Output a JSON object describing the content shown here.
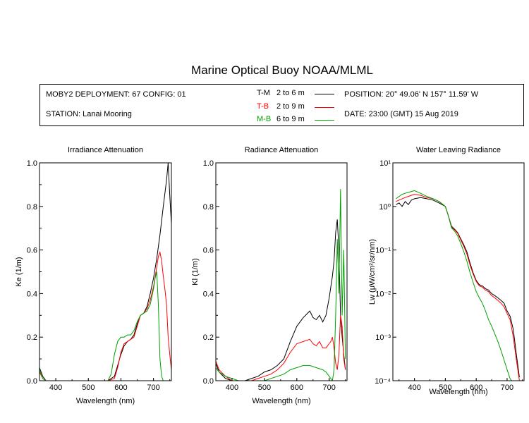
{
  "title": "Marine Optical Buoy NOAA/MLML",
  "info": {
    "deployment": "MOBY2 DEPLOYMENT: 67 CONFIG: 01",
    "station": "STATION: Lanai Mooring",
    "position": "POSITION: 20° 49.06' N   157° 11.59' W",
    "date": "DATE: 23:00 (GMT) 15 Aug 2019"
  },
  "legend": [
    {
      "code": "T-M",
      "range": "2 to 6  m",
      "color": "#000000"
    },
    {
      "code": "T-B",
      "range": "2 to 9  m",
      "color": "#ff0000"
    },
    {
      "code": "M-B",
      "range": "6 to 9  m",
      "color": "#00a000"
    }
  ],
  "chart_data": [
    {
      "type": "line",
      "title": "Irradiance Attenuation",
      "xlabel": "Wavelength (nm)",
      "ylabel": "Ke  (1/m)",
      "xlim": [
        350,
        755
      ],
      "ylim": [
        0,
        1
      ],
      "xticks": [
        "400",
        "500",
        "600",
        "700"
      ],
      "yticks": [
        "0.0",
        "0.2",
        "0.4",
        "0.6",
        "0.8",
        "1.0"
      ],
      "series": [
        {
          "name": "T-M",
          "color": "#000000",
          "x": [
            350,
            360,
            370,
            380,
            560,
            580,
            590,
            600,
            610,
            620,
            630,
            640,
            650,
            660,
            670,
            680,
            690,
            700,
            710,
            720,
            730,
            740,
            745,
            750,
            755
          ],
          "y": [
            0.06,
            0.02,
            0.0,
            0.0,
            0.0,
            0.02,
            0.07,
            0.12,
            0.16,
            0.18,
            0.19,
            0.21,
            0.26,
            0.3,
            0.31,
            0.34,
            0.4,
            0.47,
            0.56,
            0.67,
            0.8,
            0.92,
            1.0,
            0.85,
            0.72
          ]
        },
        {
          "name": "T-B",
          "color": "#ff0000",
          "x": [
            350,
            360,
            370,
            380,
            560,
            580,
            590,
            600,
            610,
            620,
            630,
            640,
            650,
            660,
            670,
            680,
            690,
            700,
            710,
            715,
            720,
            725,
            730,
            735,
            740,
            745,
            750,
            755
          ],
          "y": [
            0.04,
            0.01,
            0.0,
            0.0,
            0.0,
            0.01,
            0.06,
            0.13,
            0.17,
            0.18,
            0.19,
            0.2,
            0.25,
            0.3,
            0.31,
            0.33,
            0.37,
            0.43,
            0.52,
            0.57,
            0.59,
            0.55,
            0.48,
            0.42,
            0.35,
            0.2,
            0.12,
            0.05
          ]
        },
        {
          "name": "M-B",
          "color": "#00a000",
          "x": [
            350,
            360,
            370,
            380,
            560,
            570,
            580,
            590,
            600,
            610,
            620,
            630,
            640,
            650,
            660,
            670,
            680,
            690,
            700,
            705,
            710,
            715,
            720,
            725,
            730
          ],
          "y": [
            0.05,
            0.01,
            0.0,
            0.0,
            0.0,
            0.03,
            0.12,
            0.18,
            0.2,
            0.2,
            0.21,
            0.21,
            0.23,
            0.27,
            0.3,
            0.31,
            0.32,
            0.35,
            0.42,
            0.47,
            0.5,
            0.35,
            0.1,
            0.02,
            0.0
          ]
        }
      ]
    },
    {
      "type": "line",
      "title": "Radiance Attenuation",
      "xlabel": "Wavelength (nm)",
      "ylabel": "Kl  (1/m)",
      "xlim": [
        350,
        755
      ],
      "ylim": [
        0,
        1
      ],
      "xticks": [
        "400",
        "500",
        "600",
        "700"
      ],
      "yticks": [
        "0.0",
        "0.2",
        "0.4",
        "0.6",
        "0.8",
        "1.0"
      ],
      "series": [
        {
          "name": "T-M",
          "color": "#000000",
          "x": [
            350,
            360,
            380,
            400,
            420,
            440,
            460,
            480,
            500,
            520,
            540,
            560,
            580,
            600,
            620,
            640,
            650,
            660,
            670,
            680,
            690,
            700,
            705,
            710,
            715,
            720,
            725,
            730,
            735,
            740,
            745,
            750
          ],
          "y": [
            0.08,
            0.04,
            0.01,
            0.0,
            0.0,
            0.0,
            0.01,
            0.02,
            0.04,
            0.05,
            0.07,
            0.1,
            0.18,
            0.25,
            0.29,
            0.32,
            0.29,
            0.28,
            0.3,
            0.27,
            0.3,
            0.38,
            0.43,
            0.48,
            0.55,
            0.68,
            0.74,
            0.6,
            0.3,
            0.2,
            0.12,
            0.05
          ]
        },
        {
          "name": "T-B",
          "color": "#ff0000",
          "x": [
            350,
            360,
            380,
            400,
            420,
            440,
            460,
            480,
            500,
            520,
            540,
            560,
            580,
            600,
            620,
            640,
            650,
            660,
            670,
            680,
            690,
            700,
            705,
            710,
            715,
            720,
            725,
            730,
            735,
            740,
            745,
            750
          ],
          "y": [
            0.09,
            0.05,
            0.02,
            0.0,
            0.0,
            0.0,
            0.0,
            0.01,
            0.02,
            0.03,
            0.05,
            0.08,
            0.13,
            0.17,
            0.18,
            0.19,
            0.17,
            0.16,
            0.18,
            0.15,
            0.15,
            0.17,
            0.18,
            0.2,
            0.15,
            0.08,
            0.05,
            0.12,
            0.3,
            0.25,
            0.1,
            0.05
          ]
        },
        {
          "name": "M-B",
          "color": "#00a000",
          "x": [
            350,
            360,
            380,
            400,
            420,
            440,
            460,
            480,
            500,
            520,
            540,
            560,
            580,
            600,
            620,
            640,
            660,
            680,
            690,
            700,
            710,
            715,
            720,
            725,
            730,
            735,
            740,
            745,
            750
          ],
          "y": [
            0.06,
            0.04,
            0.02,
            0.01,
            0.0,
            0.0,
            0.0,
            0.0,
            0.0,
            0.01,
            0.02,
            0.03,
            0.05,
            0.06,
            0.07,
            0.07,
            0.06,
            0.05,
            0.04,
            0.02,
            0.0,
            0.05,
            0.3,
            0.65,
            0.4,
            0.88,
            0.3,
            0.6,
            0.1
          ]
        }
      ]
    },
    {
      "type": "line",
      "title": "Water Leaving Radiance",
      "xlabel": "Wavelength (nm)",
      "ylabel": "Lw  (μW/cm²/sr/nm)",
      "xscale": "log-y",
      "xlim": [
        330,
        755
      ],
      "ylim": [
        0.0001,
        10
      ],
      "xticks": [
        "400",
        "500",
        "600",
        "700"
      ],
      "yticks": [
        "10⁻⁴",
        "10⁻³",
        "10⁻²",
        "10⁻¹",
        "10⁰",
        "10¹"
      ],
      "series": [
        {
          "name": "T-M",
          "color": "#000000",
          "x": [
            340,
            350,
            360,
            370,
            380,
            390,
            400,
            420,
            440,
            460,
            480,
            500,
            510,
            520,
            530,
            540,
            550,
            560,
            570,
            580,
            590,
            600,
            610,
            620,
            630,
            640,
            650,
            660,
            670,
            680,
            690,
            700,
            710,
            720,
            730,
            740
          ],
          "y": [
            1.1,
            1.2,
            1.0,
            1.3,
            1.1,
            1.4,
            1.5,
            1.6,
            1.5,
            1.4,
            1.2,
            1.0,
            0.6,
            0.35,
            0.3,
            0.25,
            0.18,
            0.13,
            0.09,
            0.05,
            0.03,
            0.02,
            0.016,
            0.015,
            0.013,
            0.012,
            0.01,
            0.009,
            0.008,
            0.007,
            0.006,
            0.004,
            0.003,
            0.0015,
            0.0004,
            0.00012
          ]
        },
        {
          "name": "T-B",
          "color": "#ff0000",
          "x": [
            340,
            350,
            360,
            370,
            380,
            390,
            400,
            420,
            440,
            460,
            480,
            500,
            510,
            520,
            530,
            540,
            550,
            560,
            570,
            580,
            590,
            600,
            610,
            620,
            630,
            640,
            650,
            660,
            670,
            680,
            690,
            700,
            710,
            720,
            730,
            740
          ],
          "y": [
            1.3,
            1.4,
            1.5,
            1.6,
            1.7,
            1.8,
            1.9,
            1.8,
            1.6,
            1.5,
            1.3,
            1.0,
            0.6,
            0.33,
            0.29,
            0.24,
            0.17,
            0.12,
            0.08,
            0.045,
            0.028,
            0.019,
            0.015,
            0.014,
            0.012,
            0.011,
            0.009,
            0.008,
            0.007,
            0.006,
            0.005,
            0.0035,
            0.0025,
            0.001,
            0.0003,
            0.0001
          ]
        },
        {
          "name": "M-B",
          "color": "#00a000",
          "x": [
            340,
            350,
            360,
            370,
            380,
            390,
            400,
            420,
            440,
            460,
            480,
            500,
            510,
            520,
            530,
            540,
            550,
            560,
            570,
            580,
            590,
            600,
            610,
            620,
            630,
            640,
            650,
            660,
            670,
            680,
            690,
            700,
            710,
            715
          ],
          "y": [
            1.5,
            1.7,
            1.9,
            2.0,
            2.1,
            2.2,
            2.3,
            2.0,
            1.7,
            1.5,
            1.3,
            1.0,
            0.6,
            0.32,
            0.27,
            0.21,
            0.14,
            0.09,
            0.055,
            0.03,
            0.018,
            0.011,
            0.008,
            0.006,
            0.004,
            0.0025,
            0.0018,
            0.0012,
            0.0008,
            0.0005,
            0.0003,
            0.00018,
            0.00011,
            0.0001
          ]
        }
      ]
    }
  ]
}
